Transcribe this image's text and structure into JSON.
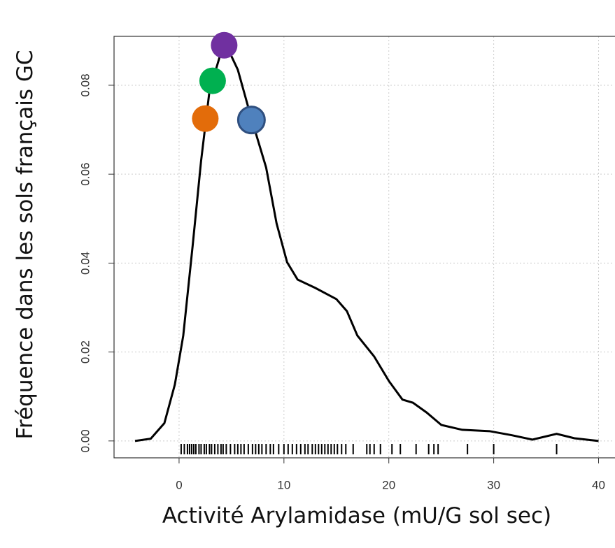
{
  "chart_data": {
    "type": "density",
    "x_label": "Activité Arylamidase (mU/G sol sec)",
    "y_label": "Fréquence dans les sols français GC",
    "x": [
      -4.2,
      -2.7,
      -1.4,
      -0.4,
      0.4,
      1.3,
      2.1,
      2.9,
      3.9,
      4.6,
      5.6,
      6.9,
      8.3,
      9.3,
      10.3,
      11.3,
      13.0,
      15.0,
      16.0,
      17.0,
      18.6,
      20.0,
      21.3,
      22.3,
      23.6,
      25.0,
      27.0,
      29.6,
      31.7,
      33.7,
      36.0,
      37.7,
      40.0
    ],
    "values": [
      0,
      0.0005,
      0.004,
      0.0127,
      0.0237,
      0.044,
      0.063,
      0.0787,
      0.0866,
      0.0885,
      0.0835,
      0.0725,
      0.0615,
      0.0489,
      0.0402,
      0.0363,
      0.0344,
      0.0319,
      0.0292,
      0.0237,
      0.019,
      0.0135,
      0.0093,
      0.0086,
      0.0064,
      0.0036,
      0.0025,
      0.0022,
      0.0013,
      0.0003,
      0.0016,
      0.0006,
      0
    ],
    "color": "#000000",
    "points": [
      {
        "color": "#7030a0",
        "x": 4.3,
        "y": 0.089
      },
      {
        "color": "#00b050",
        "x": 3.2,
        "y": 0.081
      },
      {
        "color": "#e36c0a",
        "x": 2.5,
        "y": 0.0725
      },
      {
        "color": "#4f81bd",
        "x": 6.9,
        "y": 0.0722
      }
    ],
    "rug": [
      0.2,
      0.5,
      0.8,
      1.0,
      1.2,
      1.4,
      1.6,
      1.9,
      2.1,
      2.4,
      2.6,
      2.9,
      3.1,
      3.4,
      3.7,
      4.0,
      4.2,
      4.5,
      4.9,
      5.3,
      5.6,
      5.9,
      6.2,
      6.6,
      7.0,
      7.3,
      7.6,
      7.9,
      8.3,
      8.7,
      9.0,
      9.5,
      10.0,
      10.4,
      10.8,
      11.2,
      11.6,
      12.0,
      12.3,
      12.7,
      13.0,
      13.3,
      13.6,
      13.9,
      14.2,
      14.5,
      14.8,
      15.1,
      15.5,
      15.9,
      16.6,
      17.9,
      18.2,
      18.6,
      19.2,
      20.3,
      21.1,
      22.6,
      23.8,
      24.3,
      24.7,
      27.5,
      30.0,
      36.0
    ],
    "xlim": [
      -6.2,
      41.5
    ],
    "ylim": [
      -0.0038,
      0.091
    ],
    "xticks": [
      0,
      10,
      20,
      30,
      40
    ],
    "yticks": [
      {
        "value": 0,
        "label": "0.00"
      },
      0.02,
      0.04,
      0.06,
      0.08
    ],
    "grid": true
  }
}
